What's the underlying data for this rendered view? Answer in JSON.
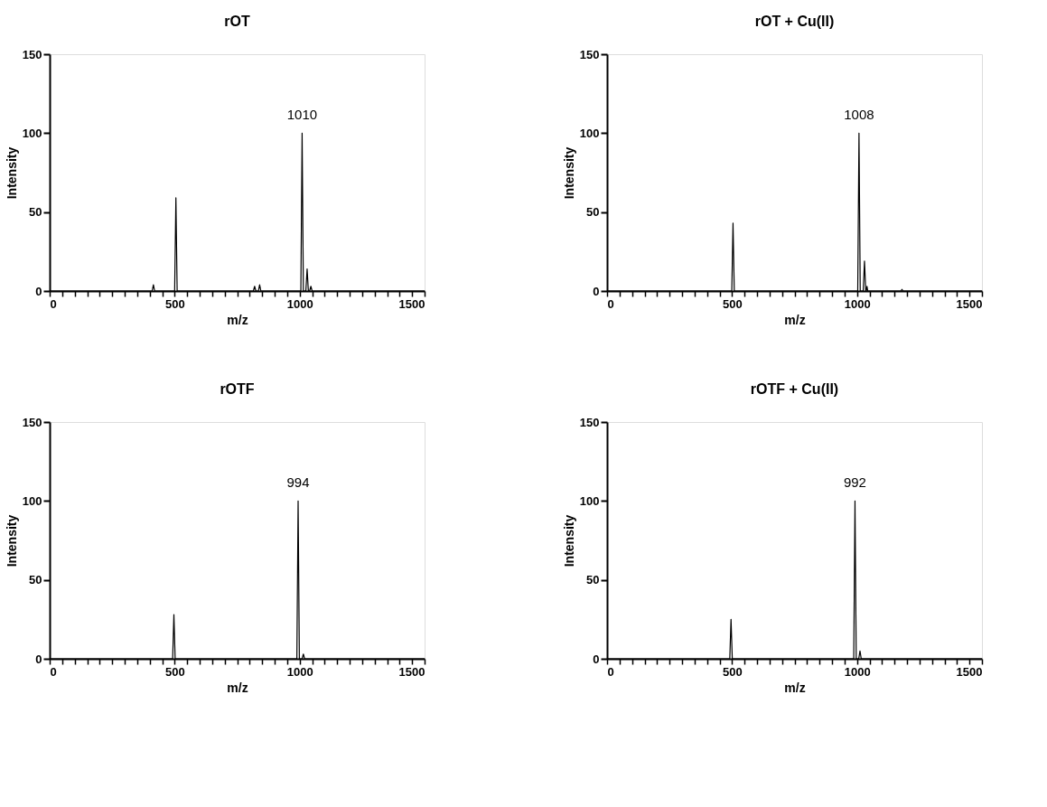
{
  "chart_data": [
    {
      "type": "line",
      "title": "rOT",
      "xlabel": "m/z",
      "ylabel": "Intensity",
      "x": [
        0,
        410,
        415,
        420,
        500,
        505,
        510,
        815,
        820,
        825,
        835,
        840,
        845,
        1005,
        1010,
        1015,
        1025,
        1030,
        1035,
        1040,
        1045,
        1050,
        1500
      ],
      "series": [
        {
          "color": "#000000",
          "values": [
            0,
            0,
            4,
            0,
            0,
            59,
            0,
            0,
            3,
            0,
            0,
            4,
            0,
            0,
            100,
            0,
            0,
            14,
            0,
            0,
            3,
            0,
            0
          ]
        }
      ],
      "xlim": [
        0,
        1500
      ],
      "xticks": [
        0,
        {
          "value": 50,
          "label": null
        },
        {
          "value": 100,
          "label": null
        },
        {
          "value": 150,
          "label": null
        },
        {
          "value": 200,
          "label": null
        },
        {
          "value": 250,
          "label": null
        },
        {
          "value": 300,
          "label": null
        },
        {
          "value": 350,
          "label": null
        },
        {
          "value": 400,
          "label": null
        },
        {
          "value": 450,
          "label": null
        },
        500,
        {
          "value": 550,
          "label": null
        },
        {
          "value": 600,
          "label": null
        },
        {
          "value": 650,
          "label": null
        },
        {
          "value": 700,
          "label": null
        },
        {
          "value": 750,
          "label": null
        },
        {
          "value": 800,
          "label": null
        },
        {
          "value": 850,
          "label": null
        },
        {
          "value": 900,
          "label": null
        },
        {
          "value": 950,
          "label": null
        },
        1000,
        {
          "value": 1050,
          "label": null
        },
        {
          "value": 1100,
          "label": null
        },
        {
          "value": 1150,
          "label": null
        },
        {
          "value": 1200,
          "label": null
        },
        {
          "value": 1250,
          "label": null
        },
        {
          "value": 1300,
          "label": null
        },
        {
          "value": 1350,
          "label": null
        },
        {
          "value": 1400,
          "label": null
        },
        {
          "value": 1450,
          "label": null
        },
        1500
      ],
      "ylim": [
        0,
        150
      ],
      "yticks": [
        0,
        50,
        100,
        150
      ],
      "annotations": [
        {
          "text": "1010",
          "x": 1010,
          "y": 100
        }
      ],
      "grid": false,
      "marker": "none",
      "line_style": "solid"
    },
    {
      "type": "line",
      "title": "rOT + Cu(II)",
      "xlabel": "m/z",
      "ylabel": "Intensity",
      "x": [
        0,
        499,
        504,
        509,
        1003,
        1008,
        1013,
        1025,
        1030,
        1035,
        1037,
        1040,
        1043,
        1175,
        1180,
        1185,
        1500
      ],
      "series": [
        {
          "color": "#000000",
          "values": [
            0,
            0,
            43,
            0,
            0,
            100,
            0,
            0,
            19,
            0,
            0,
            3,
            0,
            0,
            1,
            0,
            0
          ]
        }
      ],
      "xlim": [
        0,
        1500
      ],
      "xticks": [
        0,
        {
          "value": 50,
          "label": null
        },
        {
          "value": 100,
          "label": null
        },
        {
          "value": 150,
          "label": null
        },
        {
          "value": 200,
          "label": null
        },
        {
          "value": 250,
          "label": null
        },
        {
          "value": 300,
          "label": null
        },
        {
          "value": 350,
          "label": null
        },
        {
          "value": 400,
          "label": null
        },
        {
          "value": 450,
          "label": null
        },
        500,
        {
          "value": 550,
          "label": null
        },
        {
          "value": 600,
          "label": null
        },
        {
          "value": 650,
          "label": null
        },
        {
          "value": 700,
          "label": null
        },
        {
          "value": 750,
          "label": null
        },
        {
          "value": 800,
          "label": null
        },
        {
          "value": 850,
          "label": null
        },
        {
          "value": 900,
          "label": null
        },
        {
          "value": 950,
          "label": null
        },
        1000,
        {
          "value": 1050,
          "label": null
        },
        {
          "value": 1100,
          "label": null
        },
        {
          "value": 1150,
          "label": null
        },
        {
          "value": 1200,
          "label": null
        },
        {
          "value": 1250,
          "label": null
        },
        {
          "value": 1300,
          "label": null
        },
        {
          "value": 1350,
          "label": null
        },
        {
          "value": 1400,
          "label": null
        },
        {
          "value": 1450,
          "label": null
        },
        1500
      ],
      "ylim": [
        0,
        150
      ],
      "yticks": [
        0,
        50,
        100,
        150
      ],
      "annotations": [
        {
          "text": "1008",
          "x": 1008,
          "y": 100
        }
      ],
      "grid": false,
      "marker": "none",
      "line_style": "solid"
    },
    {
      "type": "line",
      "title": "rOTF",
      "xlabel": "m/z",
      "ylabel": "Intensity",
      "x": [
        0,
        492,
        497,
        502,
        989,
        994,
        999,
        1010,
        1015,
        1020,
        1500
      ],
      "series": [
        {
          "color": "#000000",
          "values": [
            0,
            0,
            28,
            0,
            0,
            100,
            0,
            0,
            3,
            0,
            0
          ]
        }
      ],
      "xlim": [
        0,
        1500
      ],
      "xticks": [
        0,
        {
          "value": 50,
          "label": null
        },
        {
          "value": 100,
          "label": null
        },
        {
          "value": 150,
          "label": null
        },
        {
          "value": 200,
          "label": null
        },
        {
          "value": 250,
          "label": null
        },
        {
          "value": 300,
          "label": null
        },
        {
          "value": 350,
          "label": null
        },
        {
          "value": 400,
          "label": null
        },
        {
          "value": 450,
          "label": null
        },
        500,
        {
          "value": 550,
          "label": null
        },
        {
          "value": 600,
          "label": null
        },
        {
          "value": 650,
          "label": null
        },
        {
          "value": 700,
          "label": null
        },
        {
          "value": 750,
          "label": null
        },
        {
          "value": 800,
          "label": null
        },
        {
          "value": 850,
          "label": null
        },
        {
          "value": 900,
          "label": null
        },
        {
          "value": 950,
          "label": null
        },
        1000,
        {
          "value": 1050,
          "label": null
        },
        {
          "value": 1100,
          "label": null
        },
        {
          "value": 1150,
          "label": null
        },
        {
          "value": 1200,
          "label": null
        },
        {
          "value": 1250,
          "label": null
        },
        {
          "value": 1300,
          "label": null
        },
        {
          "value": 1350,
          "label": null
        },
        {
          "value": 1400,
          "label": null
        },
        {
          "value": 1450,
          "label": null
        },
        1500
      ],
      "ylim": [
        0,
        150
      ],
      "yticks": [
        0,
        50,
        100,
        150
      ],
      "annotations": [
        {
          "text": "994",
          "x": 994,
          "y": 100
        }
      ],
      "grid": false,
      "marker": "none",
      "line_style": "solid"
    },
    {
      "type": "line",
      "title": "rOTF + Cu(II)",
      "xlabel": "m/z",
      "ylabel": "Intensity",
      "x": [
        0,
        491,
        496,
        501,
        987,
        992,
        997,
        1007,
        1012,
        1017,
        1500
      ],
      "series": [
        {
          "color": "#000000",
          "values": [
            0,
            0,
            25,
            0,
            0,
            100,
            0,
            0,
            5,
            0,
            0
          ]
        }
      ],
      "xlim": [
        0,
        1500
      ],
      "xticks": [
        0,
        {
          "value": 50,
          "label": null
        },
        {
          "value": 100,
          "label": null
        },
        {
          "value": 150,
          "label": null
        },
        {
          "value": 200,
          "label": null
        },
        {
          "value": 250,
          "label": null
        },
        {
          "value": 300,
          "label": null
        },
        {
          "value": 350,
          "label": null
        },
        {
          "value": 400,
          "label": null
        },
        {
          "value": 450,
          "label": null
        },
        500,
        {
          "value": 550,
          "label": null
        },
        {
          "value": 600,
          "label": null
        },
        {
          "value": 650,
          "label": null
        },
        {
          "value": 700,
          "label": null
        },
        {
          "value": 750,
          "label": null
        },
        {
          "value": 800,
          "label": null
        },
        {
          "value": 850,
          "label": null
        },
        {
          "value": 900,
          "label": null
        },
        {
          "value": 950,
          "label": null
        },
        1000,
        {
          "value": 1050,
          "label": null
        },
        {
          "value": 1100,
          "label": null
        },
        {
          "value": 1150,
          "label": null
        },
        {
          "value": 1200,
          "label": null
        },
        {
          "value": 1250,
          "label": null
        },
        {
          "value": 1300,
          "label": null
        },
        {
          "value": 1350,
          "label": null
        },
        {
          "value": 1400,
          "label": null
        },
        {
          "value": 1450,
          "label": null
        },
        1500
      ],
      "ylim": [
        0,
        150
      ],
      "yticks": [
        0,
        50,
        100,
        150
      ],
      "annotations": [
        {
          "text": "992",
          "x": 992,
          "y": 100
        }
      ],
      "grid": false,
      "marker": "none",
      "line_style": "solid"
    }
  ]
}
